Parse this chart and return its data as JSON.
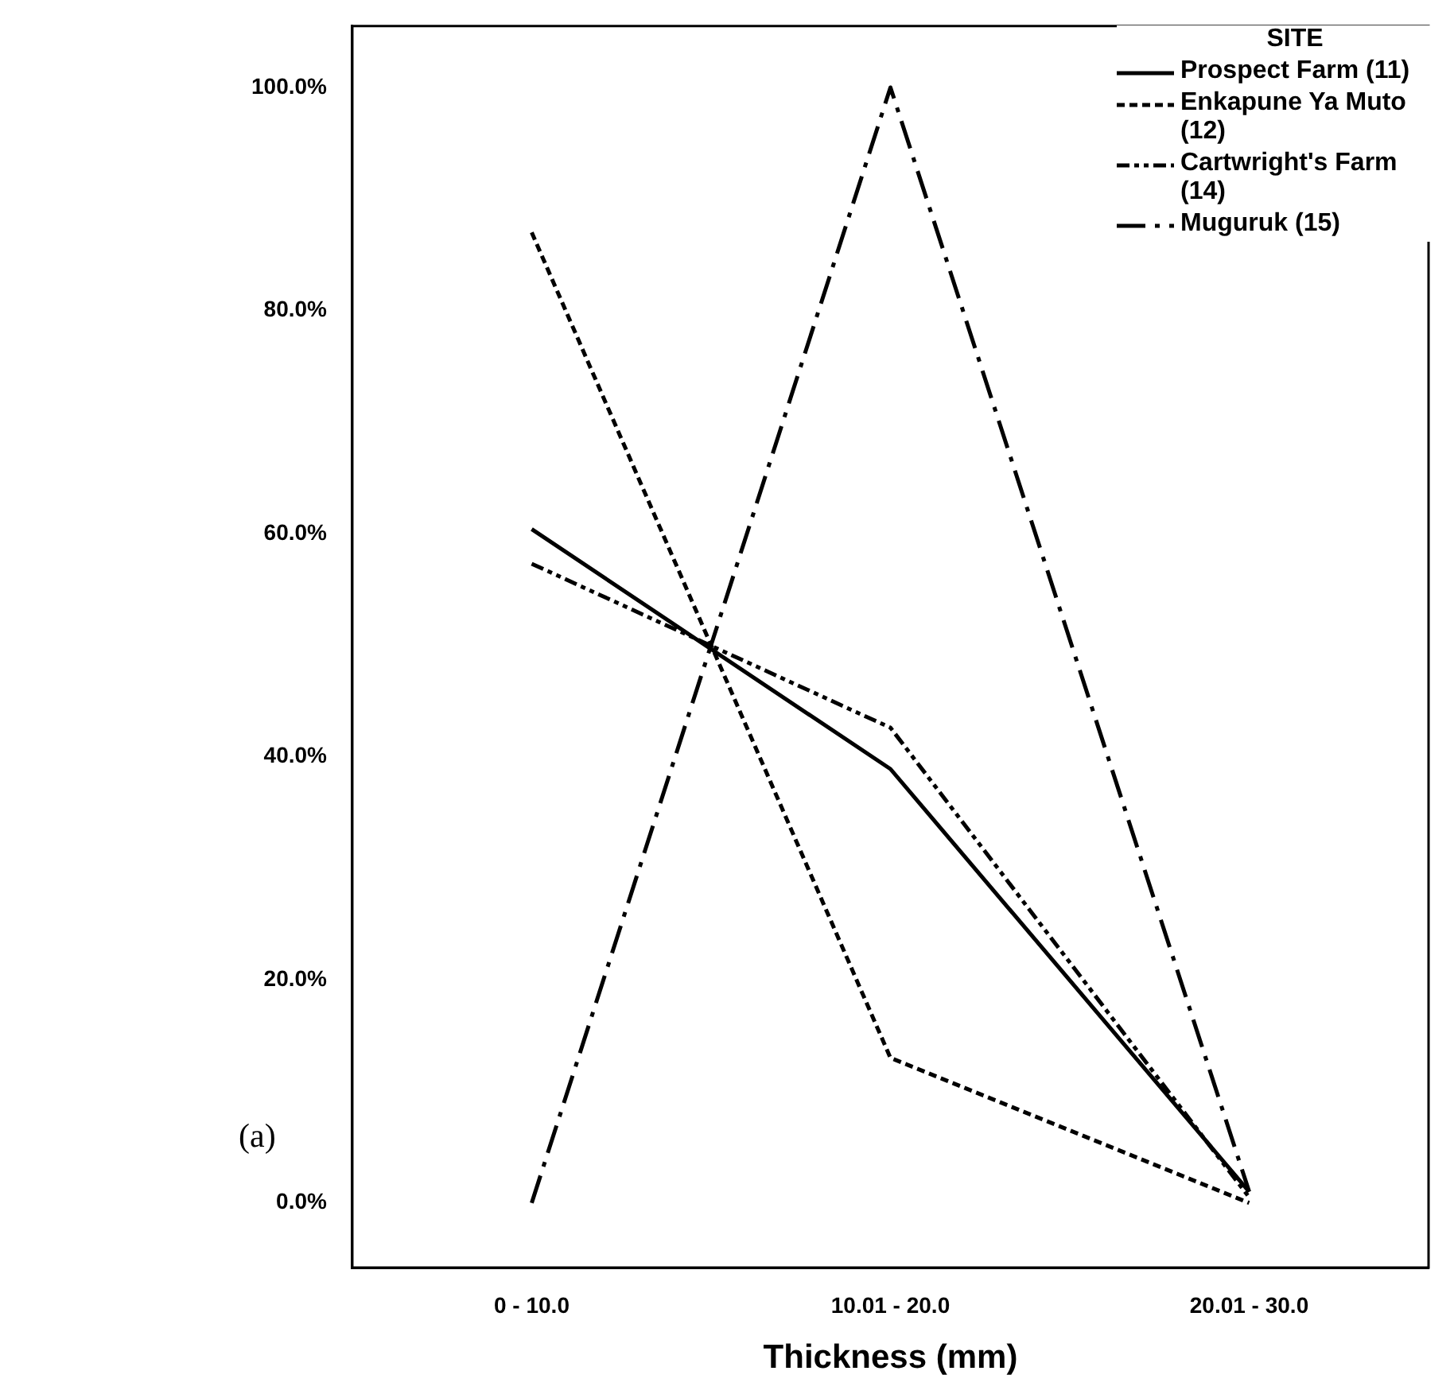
{
  "chart_data": {
    "type": "line",
    "xlabel": "Thickness (mm)",
    "legend_title": "SITE",
    "legend": "top right",
    "grid": false,
    "marker": "none",
    "categories": [
      "0 - 10.0",
      "10.01 - 20.0",
      "20.01 - 30.0"
    ],
    "ylim": [
      -5.8,
      105.5
    ],
    "yticks": [
      {
        "value": 0,
        "label": "0.0%"
      },
      {
        "value": 20,
        "label": "20.0%"
      },
      {
        "value": 40,
        "label": "40.0%"
      },
      {
        "value": 60,
        "label": "60.0%"
      },
      {
        "value": 80,
        "label": "80.0%"
      },
      {
        "value": 100,
        "label": "100.0%"
      }
    ],
    "series": [
      {
        "name": "Prospect Farm (11)",
        "color": "#000000",
        "line_style": "solid",
        "values": [
          60.4,
          38.9,
          1
        ]
      },
      {
        "name": "Enkapune Ya Muto (12)",
        "color": "#000000",
        "line_style": "dashed",
        "values": [
          87,
          13,
          0
        ]
      },
      {
        "name": "Cartwright's Farm (14)",
        "color": "#000000",
        "line_style": "dashdotdot",
        "values": [
          57.3,
          42.6,
          0.5
        ]
      },
      {
        "name": "Muguruk (15)",
        "color": "#000000",
        "line_style": "dashdot",
        "values": [
          0,
          100,
          1
        ]
      }
    ],
    "annotations": [
      "(a)"
    ]
  }
}
